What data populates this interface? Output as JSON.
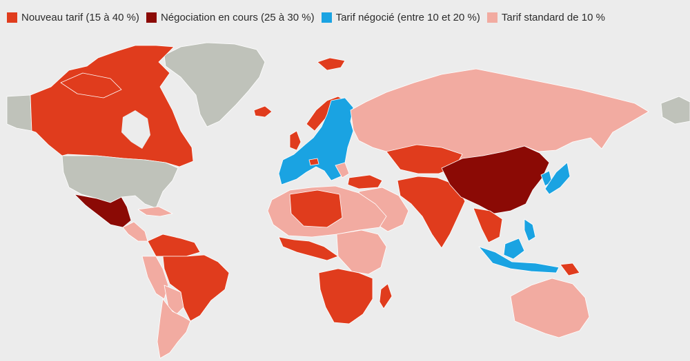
{
  "colors": {
    "background": "#ececec",
    "no_data": "#bfc2ba",
    "new_tariff": "#e03c1d",
    "negotiation": "#8b0a05",
    "negotiated": "#1aa3e2",
    "standard": "#f2aba1",
    "border": "#ffffff"
  },
  "legend": [
    {
      "label": "Nouveau tarif (15 à 40 %)",
      "color": "#e03c1d"
    },
    {
      "label": "Négociation en cours (25 à 30 %)",
      "color": "#8b0a05"
    },
    {
      "label": "Tarif négocié (entre 10 et 20 %)",
      "color": "#1aa3e2"
    },
    {
      "label": "Tarif standard de 10 %",
      "color": "#f2aba1"
    }
  ]
}
